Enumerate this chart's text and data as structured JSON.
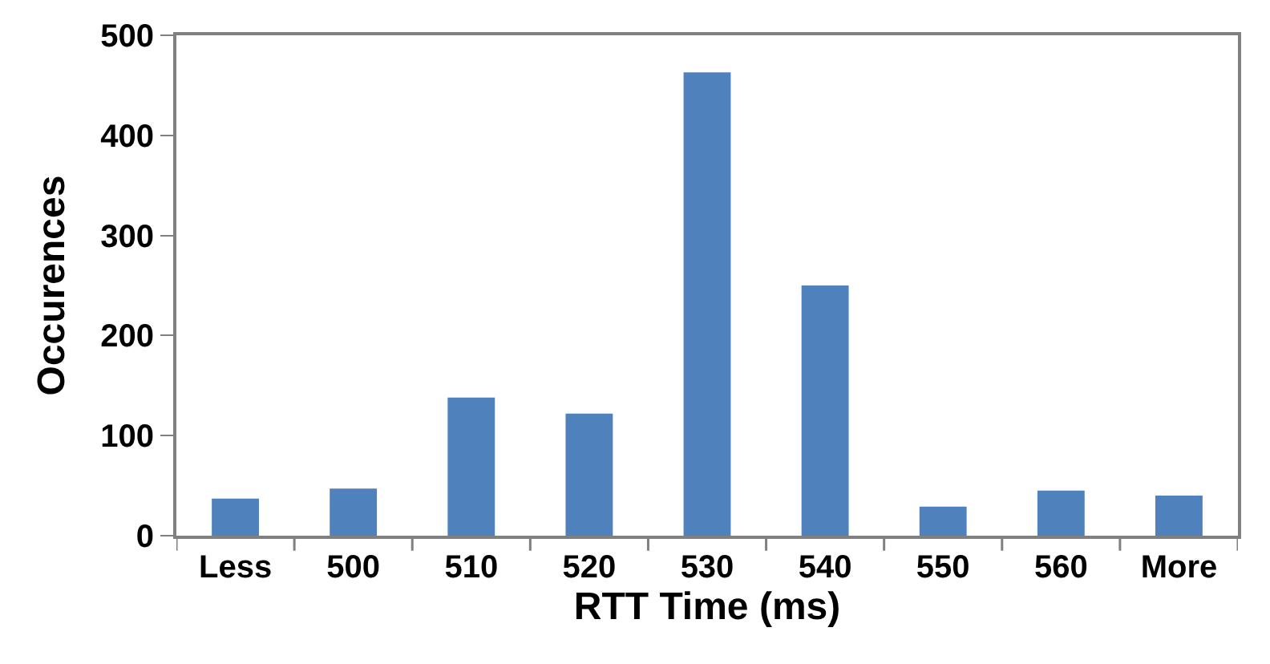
{
  "chart_data": {
    "type": "bar",
    "xlabel": "RTT Time (ms)",
    "ylabel": "Occurences",
    "categories": [
      "Less",
      "500",
      "510",
      "520",
      "530",
      "540",
      "550",
      "560",
      "More"
    ],
    "values": [
      37,
      47,
      138,
      122,
      463,
      250,
      29,
      45,
      40
    ],
    "color": "#4f81bd",
    "ylim": [
      0,
      500
    ],
    "yticks": [
      0,
      100,
      200,
      300,
      400,
      500
    ]
  }
}
